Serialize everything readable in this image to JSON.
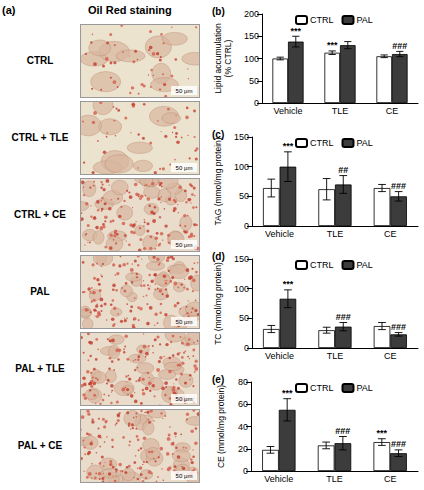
{
  "figure": {
    "panel_a": {
      "label": "(a)",
      "title": "Oil Red staining",
      "rows": [
        "CTRL",
        "CTRL + TLE",
        "CTRL + CE",
        "PAL",
        "PAL + TLE",
        "PAL + CE"
      ],
      "scale_bar": "50 μm"
    }
  },
  "chart_data": [
    {
      "type": "bar",
      "panel_label": "(b)",
      "y_label": "Lipid accumulation\n(% CTRL)",
      "categories": [
        "Vehicle",
        "TLE",
        "CE"
      ],
      "series": [
        {
          "name": "CTRL",
          "color": "#ffffff",
          "values": [
            100,
            113,
            105
          ],
          "errors": [
            3,
            4,
            3
          ]
        },
        {
          "name": "PAL",
          "color": "#3c3c3c",
          "values": [
            138,
            130,
            110
          ],
          "errors": [
            12,
            8,
            6
          ]
        }
      ],
      "ylim": [
        0,
        200
      ],
      "yticks": [
        0,
        50,
        100,
        150,
        200
      ],
      "grid": false,
      "legend": "top",
      "annotations": [
        {
          "text": "***",
          "category": "Vehicle",
          "series": "PAL"
        },
        {
          "text": "***",
          "category": "TLE",
          "series": "CTRL"
        },
        {
          "text": "###",
          "category": "CE",
          "series": "PAL"
        }
      ]
    },
    {
      "type": "bar",
      "panel_label": "(c)",
      "y_label": "TAG (mmol/mg protein)",
      "categories": [
        "Vehicle",
        "TLE",
        "CE"
      ],
      "series": [
        {
          "name": "CTRL",
          "color": "#ffffff",
          "values": [
            64,
            62,
            64
          ],
          "errors": [
            15,
            18,
            6
          ]
        },
        {
          "name": "PAL",
          "color": "#3c3c3c",
          "values": [
            100,
            70,
            50
          ],
          "errors": [
            25,
            15,
            8
          ]
        }
      ],
      "ylim": [
        0,
        150
      ],
      "yticks": [
        0,
        50,
        100,
        150
      ],
      "grid": false,
      "legend": "top",
      "annotations": [
        {
          "text": "***",
          "category": "Vehicle",
          "series": "PAL"
        },
        {
          "text": "##",
          "category": "TLE",
          "series": "PAL"
        },
        {
          "text": "###",
          "category": "CE",
          "series": "PAL"
        }
      ]
    },
    {
      "type": "bar",
      "panel_label": "(d)",
      "y_label": "TC (mmol/mg protein)",
      "categories": [
        "Vehicle",
        "TLE",
        "CE"
      ],
      "series": [
        {
          "name": "CTRL",
          "color": "#ffffff",
          "values": [
            32,
            30,
            37
          ],
          "errors": [
            6,
            5,
            6
          ]
        },
        {
          "name": "PAL",
          "color": "#3c3c3c",
          "values": [
            83,
            36,
            23
          ],
          "errors": [
            15,
            7,
            3
          ]
        }
      ],
      "ylim": [
        0,
        150
      ],
      "yticks": [
        0,
        50,
        100,
        150
      ],
      "grid": false,
      "legend": "top",
      "annotations": [
        {
          "text": "***",
          "category": "Vehicle",
          "series": "PAL"
        },
        {
          "text": "###",
          "category": "TLE",
          "series": "PAL"
        },
        {
          "text": "###",
          "category": "CE",
          "series": "PAL"
        }
      ]
    },
    {
      "type": "bar",
      "panel_label": "(e)",
      "y_label": "CE (mmol/mg protein)",
      "categories": [
        "Vehicle",
        "TLE",
        "CE"
      ],
      "series": [
        {
          "name": "CTRL",
          "color": "#ffffff",
          "values": [
            19,
            23,
            26
          ],
          "errors": [
            3,
            3,
            3
          ]
        },
        {
          "name": "PAL",
          "color": "#3c3c3c",
          "values": [
            55,
            25,
            16
          ],
          "errors": [
            10,
            6,
            3
          ]
        }
      ],
      "ylim": [
        0,
        80
      ],
      "yticks": [
        0,
        20,
        40,
        60,
        80
      ],
      "grid": false,
      "legend": "top",
      "annotations": [
        {
          "text": "***",
          "category": "Vehicle",
          "series": "PAL"
        },
        {
          "text": "###",
          "category": "TLE",
          "series": "PAL"
        },
        {
          "text": "***",
          "category": "CE",
          "series": "CTRL"
        },
        {
          "text": "###",
          "category": "CE",
          "series": "PAL"
        }
      ]
    }
  ]
}
